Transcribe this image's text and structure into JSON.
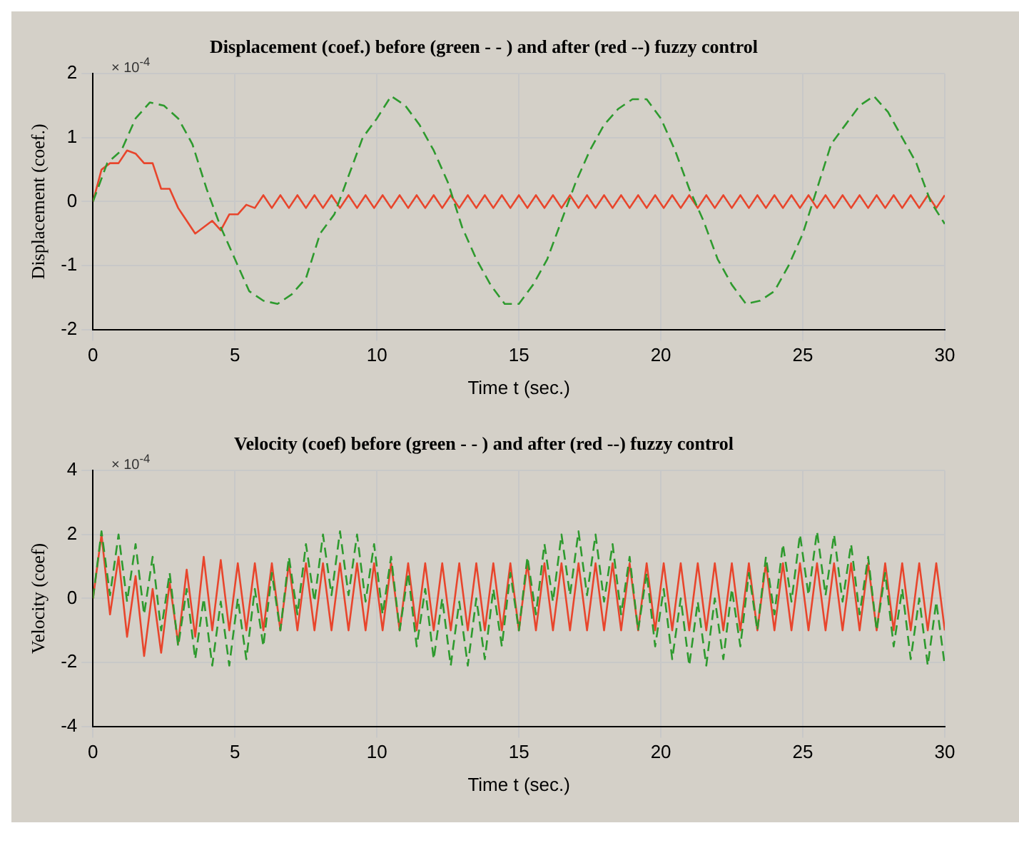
{
  "chart_data": [
    {
      "type": "line",
      "title": "Displacement (coef.) before (green - - ) and after (red --) fuzzy control",
      "xlabel": "Time t (sec.)",
      "ylabel": "Displacement (coef.)",
      "annotations": [
        "× 10$^{-4}$"
      ],
      "x": [
        0,
        0.3,
        0.6,
        0.9,
        1.2,
        1.5,
        1.8,
        2.1,
        2.4,
        2.7,
        3,
        3.3,
        3.6,
        3.9,
        4.2,
        4.5,
        4.8,
        5.1,
        5.4,
        5.7,
        6,
        6.3,
        6.6,
        6.9,
        7.2,
        7.5,
        7.8,
        8.1,
        8.4,
        8.7,
        9,
        9.3,
        9.6,
        9.9,
        10.2,
        10.5,
        10.8,
        11.1,
        11.4,
        11.7,
        12,
        12.3,
        12.6,
        12.9,
        13.2,
        13.5,
        13.8,
        14.1,
        14.4,
        14.7,
        15,
        15.3,
        15.6,
        15.9,
        16.2,
        16.5,
        16.8,
        17.1,
        17.4,
        17.7,
        18,
        18.3,
        18.6,
        18.9,
        19.2,
        19.5,
        19.8,
        20.1,
        20.4,
        20.7,
        21,
        21.3,
        21.6,
        21.9,
        22.2,
        22.5,
        22.8,
        23.1,
        23.4,
        23.7,
        24,
        24.3,
        24.6,
        24.9,
        25.2,
        25.5,
        25.8,
        26.1,
        26.4,
        26.7,
        27,
        27.3,
        27.6,
        27.9,
        28.2,
        28.5,
        28.8,
        29.1,
        29.4,
        29.7,
        30
      ],
      "series": [
        {
          "color": "#2e9a2e",
          "line_style": "dashed",
          "x": [
            0,
            0.5,
            1,
            1.5,
            2,
            2.5,
            3,
            3.5,
            4,
            4.5,
            5,
            5.5,
            6,
            6.5,
            7,
            7.5,
            8,
            8.5,
            9,
            9.5,
            10,
            10.5,
            11,
            11.5,
            12,
            12.5,
            13,
            13.5,
            14,
            14.5,
            15,
            15.5,
            16,
            16.5,
            17,
            17.5,
            18,
            18.5,
            19,
            19.5,
            20,
            20.5,
            21,
            21.5,
            22,
            22.5,
            23,
            23.5,
            24,
            24.5,
            25,
            25.5,
            26,
            26.5,
            27,
            27.5,
            28,
            28.5,
            29,
            29.5,
            30
          ],
          "values": [
            0,
            0.6,
            0.8,
            1.3,
            1.55,
            1.5,
            1.3,
            0.9,
            0.2,
            -0.4,
            -0.9,
            -1.4,
            -1.55,
            -1.6,
            -1.45,
            -1.2,
            -0.5,
            -0.2,
            0.4,
            1.0,
            1.3,
            1.65,
            1.5,
            1.2,
            0.8,
            0.3,
            -0.4,
            -0.9,
            -1.3,
            -1.6,
            -1.6,
            -1.3,
            -0.9,
            -0.3,
            0.3,
            0.8,
            1.2,
            1.45,
            1.6,
            1.6,
            1.3,
            0.8,
            0.2,
            -0.3,
            -0.9,
            -1.3,
            -1.6,
            -1.55,
            -1.4,
            -1.0,
            -0.5,
            0.2,
            0.9,
            1.2,
            1.5,
            1.65,
            1.4,
            1.0,
            0.6,
            0.0,
            -0.35
          ]
        },
        {
          "color": "#e8452c",
          "line_style": "solid",
          "values": [
            0,
            0.5,
            0.6,
            0.6,
            0.8,
            0.75,
            0.6,
            0.6,
            0.2,
            0.2,
            -0.1,
            -0.3,
            -0.5,
            -0.4,
            -0.3,
            -0.45,
            -0.2,
            -0.2,
            -0.05,
            -0.1,
            0.1,
            -0.1,
            0.1,
            -0.1,
            0.1,
            -0.1,
            0.1,
            -0.1,
            0.1,
            -0.1,
            0.1,
            -0.1,
            0.1,
            -0.1,
            0.1,
            -0.1,
            0.1,
            -0.1,
            0.1,
            -0.1,
            0.1,
            -0.1,
            0.1,
            -0.1,
            0.1,
            -0.1,
            0.1,
            -0.1,
            0.1,
            -0.1,
            0.1,
            -0.1,
            0.1,
            -0.1,
            0.1,
            -0.1,
            0.1,
            -0.1,
            0.1,
            -0.1,
            0.1,
            -0.1,
            0.1,
            -0.1,
            0.1,
            -0.1,
            0.1,
            -0.1,
            0.1,
            -0.1,
            0.1,
            -0.1,
            0.1,
            -0.1,
            0.1,
            -0.1,
            0.1,
            -0.1,
            0.1,
            -0.1,
            0.1,
            -0.1,
            0.1,
            -0.1,
            0.1,
            -0.1,
            0.1,
            -0.1,
            0.1,
            -0.1,
            0.1,
            -0.1,
            0.1,
            -0.1,
            0.1,
            -0.1,
            0.1,
            -0.1,
            0.1,
            -0.1,
            0.1
          ]
        }
      ],
      "xlim": [
        0,
        30
      ],
      "xticks": [
        0,
        5,
        10,
        15,
        20,
        25,
        30
      ],
      "ylim": [
        -2,
        2
      ],
      "yticks": [
        -2,
        -1,
        0,
        1,
        2
      ],
      "grid": true,
      "legend": false,
      "marker": "none"
    },
    {
      "type": "line",
      "title": "Velocity (coef) before (green - - ) and after (red --) fuzzy control",
      "xlabel": "Time t (sec.)",
      "ylabel": "Velocity (coef)",
      "annotations": [
        "× 10$^{-4}$"
      ],
      "x": [
        0,
        0.3,
        0.6,
        0.9,
        1.2,
        1.5,
        1.8,
        2.1,
        2.4,
        2.7,
        3,
        3.3,
        3.6,
        3.9,
        4.2,
        4.5,
        4.8,
        5.1,
        5.4,
        5.7,
        6,
        6.3,
        6.6,
        6.9,
        7.2,
        7.5,
        7.8,
        8.1,
        8.4,
        8.7,
        9,
        9.3,
        9.6,
        9.9,
        10.2,
        10.5,
        10.8,
        11.1,
        11.4,
        11.7,
        12,
        12.3,
        12.6,
        12.9,
        13.2,
        13.5,
        13.8,
        14.1,
        14.4,
        14.7,
        15,
        15.3,
        15.6,
        15.9,
        16.2,
        16.5,
        16.8,
        17.1,
        17.4,
        17.7,
        18,
        18.3,
        18.6,
        18.9,
        19.2,
        19.5,
        19.8,
        20.1,
        20.4,
        20.7,
        21,
        21.3,
        21.6,
        21.9,
        22.2,
        22.5,
        22.8,
        23.1,
        23.4,
        23.7,
        24,
        24.3,
        24.6,
        24.9,
        25.2,
        25.5,
        25.8,
        26.1,
        26.4,
        26.7,
        27,
        27.3,
        27.6,
        27.9,
        28.2,
        28.5,
        28.8,
        29.1,
        29.4,
        29.7,
        30
      ],
      "series": [
        {
          "color": "#2e9a2e",
          "line_style": "dashed",
          "values": [
            0,
            2.1,
            0.1,
            2.0,
            -0.1,
            1.7,
            -0.5,
            1.3,
            -1.0,
            0.8,
            -1.5,
            0.3,
            -1.9,
            0.0,
            -2.1,
            -0.1,
            -2.1,
            0.0,
            -1.9,
            0.3,
            -1.5,
            0.8,
            -1.0,
            1.3,
            -0.5,
            1.7,
            -0.1,
            2.0,
            0.1,
            2.1,
            0.1,
            2.0,
            -0.1,
            1.7,
            -0.5,
            1.3,
            -1.0,
            0.8,
            -1.5,
            0.3,
            -1.9,
            0.0,
            -2.1,
            -0.1,
            -2.1,
            0.0,
            -1.9,
            0.3,
            -1.5,
            0.8,
            -1.0,
            1.3,
            -0.5,
            1.7,
            -0.1,
            2.0,
            0.1,
            2.1,
            0.1,
            2.0,
            -0.1,
            1.7,
            -0.5,
            1.3,
            -1.0,
            0.8,
            -1.5,
            0.3,
            -1.9,
            0.0,
            -2.1,
            -0.1,
            -2.1,
            0.0,
            -1.9,
            0.3,
            -1.5,
            0.8,
            -1.0,
            1.3,
            -0.5,
            1.7,
            -0.1,
            2.0,
            0.1,
            2.1,
            0.1,
            2.0,
            -0.1,
            1.7,
            -0.5,
            1.3,
            -1.0,
            0.8,
            -1.5,
            0.3,
            -1.9,
            0.0,
            -2.1,
            -0.1,
            -2.1
          ]
        },
        {
          "color": "#e8452c",
          "line_style": "solid",
          "values": [
            0,
            2.0,
            -0.5,
            1.3,
            -1.2,
            0.7,
            -1.8,
            0.3,
            -1.7,
            0.5,
            -1.4,
            0.9,
            -1.2,
            1.3,
            -1.0,
            1.2,
            -1.0,
            1.1,
            -1.0,
            1.1,
            -1.0,
            1.1,
            -1.0,
            1.1,
            -1.0,
            1.1,
            -1.0,
            1.1,
            -1.0,
            1.1,
            -1.0,
            1.1,
            -1.0,
            1.1,
            -1.0,
            1.1,
            -1.0,
            1.1,
            -1.0,
            1.1,
            -1.0,
            1.1,
            -1.0,
            1.1,
            -1.0,
            1.1,
            -1.0,
            1.1,
            -1.0,
            1.1,
            -1.0,
            1.1,
            -1.0,
            1.1,
            -1.0,
            1.1,
            -1.0,
            1.1,
            -1.0,
            1.1,
            -1.0,
            1.1,
            -1.0,
            1.1,
            -1.0,
            1.1,
            -1.0,
            1.1,
            -1.0,
            1.1,
            -1.0,
            1.1,
            -1.0,
            1.1,
            -1.0,
            1.1,
            -1.0,
            1.1,
            -1.0,
            1.1,
            -1.0,
            1.1,
            -1.0,
            1.1,
            -1.0,
            1.1,
            -1.0,
            1.1,
            -1.0,
            1.1,
            -1.0,
            1.1,
            -1.0,
            1.1,
            -1.0,
            1.1,
            -1.0,
            1.1,
            -1.0,
            1.1,
            -1.0
          ]
        }
      ],
      "xlim": [
        0,
        30
      ],
      "xticks": [
        0,
        5,
        10,
        15,
        20,
        25,
        30
      ],
      "ylim": [
        -4,
        4
      ],
      "yticks": [
        -4,
        -2,
        0,
        2,
        4
      ],
      "grid": true,
      "legend": false,
      "marker": "none"
    }
  ]
}
